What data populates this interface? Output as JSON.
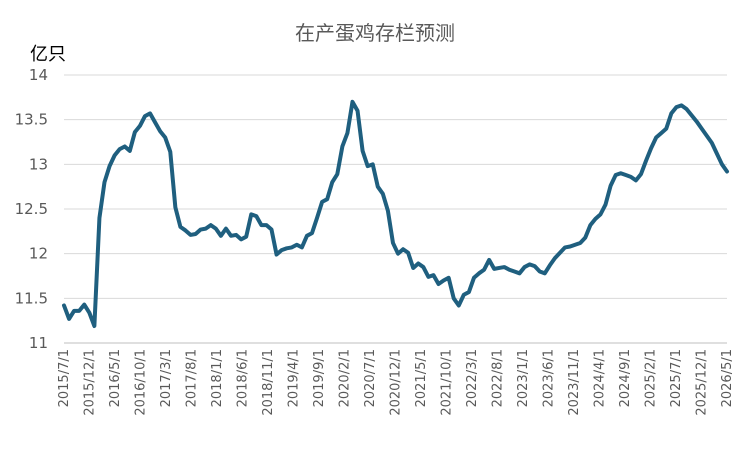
{
  "chart_data": {
    "type": "line",
    "title": "在产蛋鸡存栏预测",
    "ylabel": "亿只",
    "xlabel": "",
    "ylim": [
      11,
      14
    ],
    "yticks": [
      "11",
      "11.5",
      "12",
      "12.5",
      "13",
      "13.5",
      "14"
    ],
    "grid": true,
    "legend": "none",
    "x_tick_labels": [
      "2015/7/1",
      "2015/12/1",
      "2016/5/1",
      "2016/10/1",
      "2017/3/1",
      "2017/8/1",
      "2018/1/1",
      "2018/6/1",
      "2018/11/1",
      "2019/4/1",
      "2019/9/1",
      "2020/2/1",
      "2020/7/1",
      "2020/12/1",
      "2021/5/1",
      "2021/10/1",
      "2022/3/1",
      "2022/8/1",
      "2023/1/1",
      "2023/6/1",
      "2023/11/1",
      "2024/4/1",
      "2024/9/1",
      "2025/2/1",
      "2025/7/1",
      "2025/12/1",
      "2026/5/1"
    ],
    "colors": {
      "series": "#1f5f7f"
    },
    "series": [
      {
        "values": [
          11.42,
          11.27,
          11.36,
          11.36,
          11.43,
          11.34,
          11.19,
          12.4,
          12.8,
          12.98,
          13.1,
          13.17,
          13.2,
          13.15,
          13.36,
          13.43,
          13.54,
          13.57,
          13.47,
          13.37,
          13.3,
          13.14,
          12.52,
          12.3,
          12.26,
          12.21,
          12.22,
          12.27,
          12.28,
          12.32,
          12.28,
          12.2,
          12.28,
          12.2,
          12.21,
          12.16,
          12.19,
          12.44,
          12.42,
          12.32,
          12.32,
          12.27,
          11.99,
          12.04,
          12.06,
          12.07,
          12.1,
          12.07,
          12.2,
          12.23,
          12.4,
          12.58,
          12.61,
          12.8,
          12.89,
          13.2,
          13.35,
          13.7,
          13.6,
          13.15,
          12.98,
          13.0,
          12.75,
          12.67,
          12.48,
          12.12,
          12.0,
          12.05,
          12.01,
          11.84,
          11.89,
          11.85,
          11.74,
          11.76,
          11.66,
          11.7,
          11.73,
          11.5,
          11.42,
          11.54,
          11.57,
          11.73,
          11.78,
          11.82,
          11.93,
          11.83,
          11.84,
          11.85,
          11.82,
          11.8,
          11.78,
          11.85,
          11.88,
          11.86,
          11.8,
          11.78,
          11.87,
          11.95,
          12.01,
          12.07,
          12.08,
          12.1,
          12.12,
          12.18,
          12.32,
          12.39,
          12.44,
          12.55,
          12.76,
          12.88,
          12.9,
          12.88,
          12.86,
          12.82,
          12.89,
          13.04,
          13.18,
          13.3,
          13.35,
          13.4,
          13.57,
          13.64,
          13.66,
          13.62,
          13.55,
          13.48,
          13.4,
          13.32,
          13.24,
          13.12,
          13.0,
          12.92
        ]
      }
    ]
  }
}
